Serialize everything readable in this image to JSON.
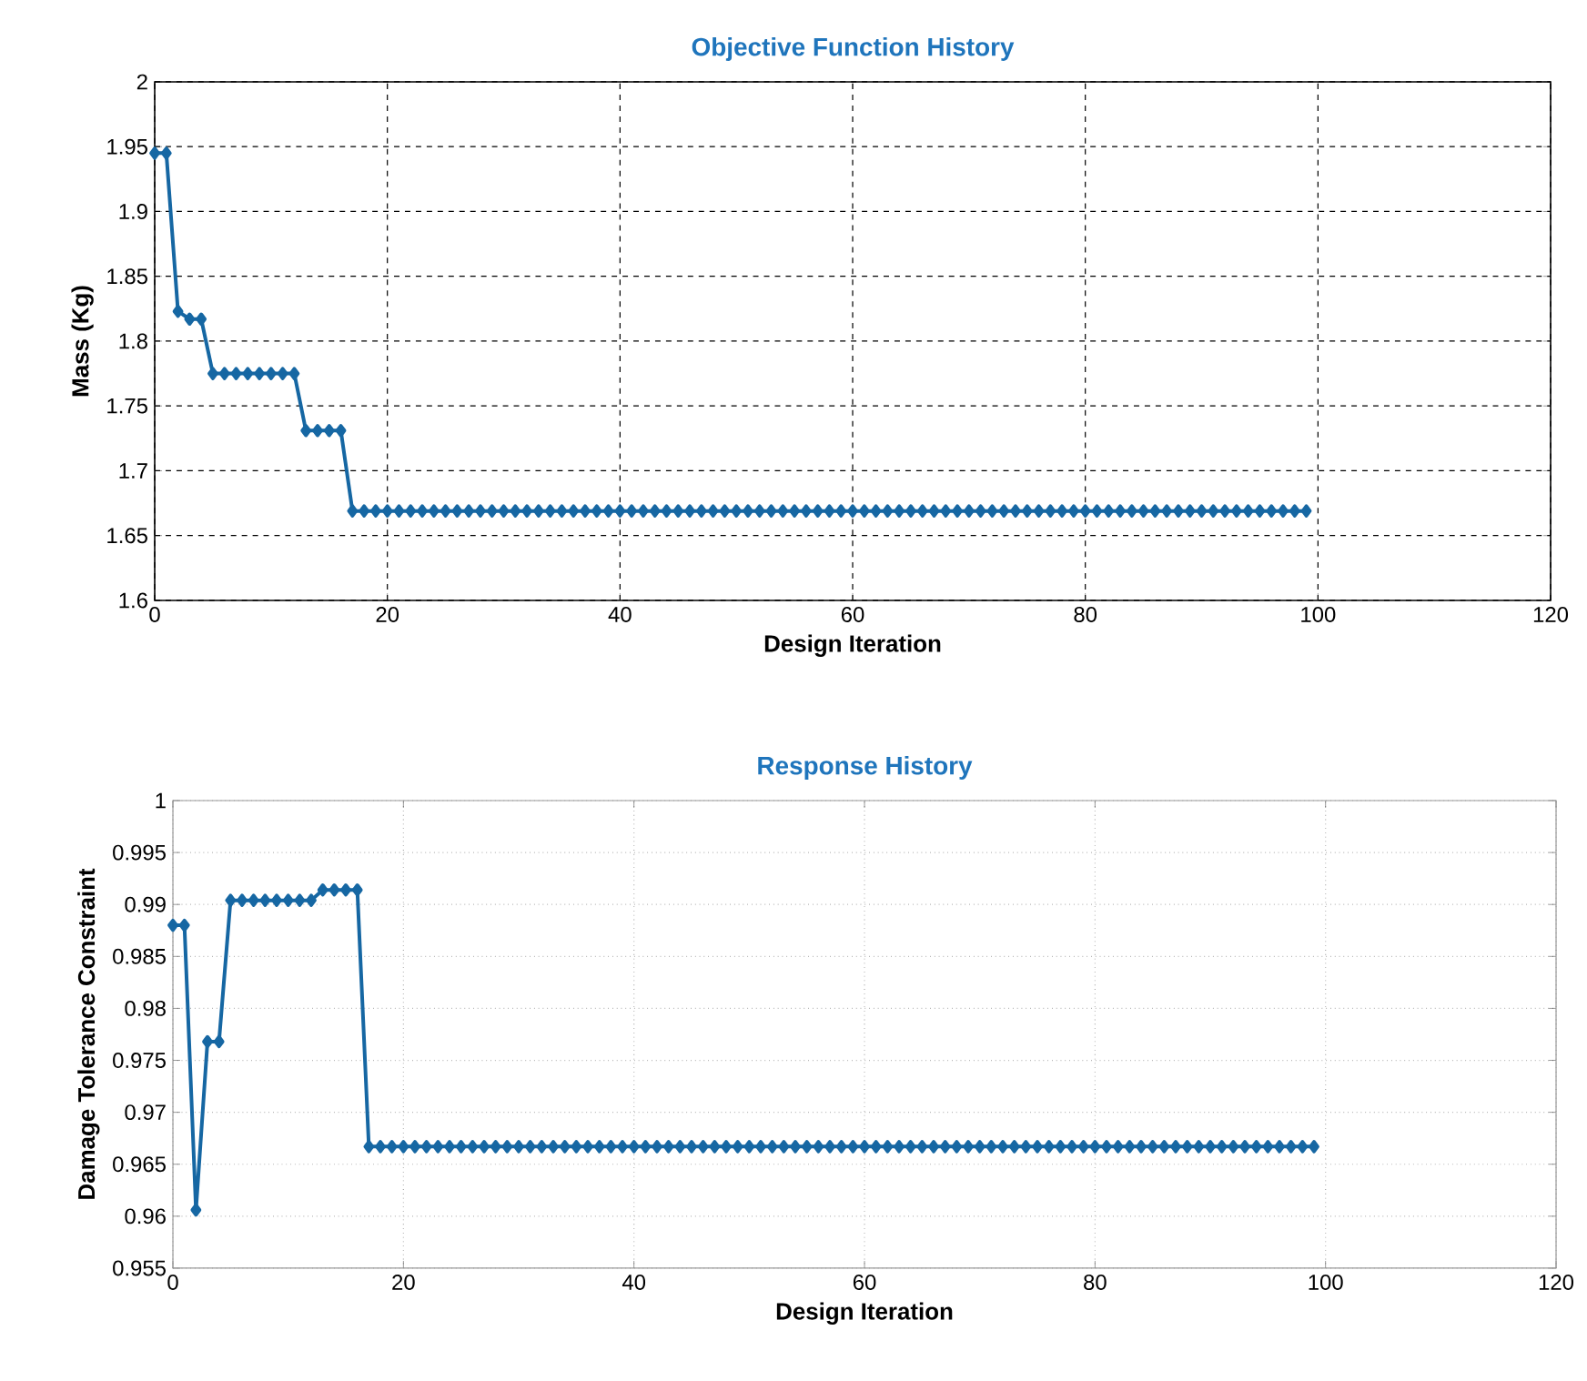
{
  "chart_data": [
    {
      "type": "line",
      "title": "Objective Function  History",
      "xlabel": "Design Iteration",
      "ylabel": "Mass (Kg)",
      "xlim": [
        0,
        120
      ],
      "xticks": [
        0,
        20,
        40,
        60,
        80,
        100,
        120
      ],
      "ylim": [
        1.6,
        2
      ],
      "yticks": [
        1.6,
        1.65,
        1.7,
        1.75,
        1.8,
        1.85,
        1.9,
        1.95,
        2
      ],
      "grid": true,
      "marker": "diamond",
      "line_style": "solid",
      "x": [
        0,
        1,
        2,
        3,
        4,
        5,
        6,
        7,
        8,
        9,
        10,
        11,
        12,
        13,
        14,
        15,
        16,
        17,
        18,
        19,
        20,
        21,
        22,
        23,
        24,
        25,
        26,
        27,
        28,
        29,
        30,
        31,
        32,
        33,
        34,
        35,
        36,
        37,
        38,
        39,
        40,
        41,
        42,
        43,
        44,
        45,
        46,
        47,
        48,
        49,
        50,
        51,
        52,
        53,
        54,
        55,
        56,
        57,
        58,
        59,
        60,
        61,
        62,
        63,
        64,
        65,
        66,
        67,
        68,
        69,
        70,
        71,
        72,
        73,
        74,
        75,
        76,
        77,
        78,
        79,
        80,
        81,
        82,
        83,
        84,
        85,
        86,
        87,
        88,
        89,
        90,
        91,
        92,
        93,
        94,
        95,
        96,
        97,
        98,
        99
      ],
      "series": [
        {
          "color": "#1667a3",
          "values": [
            1.945,
            1.945,
            1.823,
            1.817,
            1.817,
            1.775,
            1.775,
            1.775,
            1.775,
            1.775,
            1.775,
            1.775,
            1.775,
            1.731,
            1.731,
            1.731,
            1.731,
            1.669,
            1.669,
            1.669,
            1.669,
            1.669,
            1.669,
            1.669,
            1.669,
            1.669,
            1.669,
            1.669,
            1.669,
            1.669,
            1.669,
            1.669,
            1.669,
            1.669,
            1.669,
            1.669,
            1.669,
            1.669,
            1.669,
            1.669,
            1.669,
            1.669,
            1.669,
            1.669,
            1.669,
            1.669,
            1.669,
            1.669,
            1.669,
            1.669,
            1.669,
            1.669,
            1.669,
            1.669,
            1.669,
            1.669,
            1.669,
            1.669,
            1.669,
            1.669,
            1.669,
            1.669,
            1.669,
            1.669,
            1.669,
            1.669,
            1.669,
            1.669,
            1.669,
            1.669,
            1.669,
            1.669,
            1.669,
            1.669,
            1.669,
            1.669,
            1.669,
            1.669,
            1.669,
            1.669,
            1.669,
            1.669,
            1.669,
            1.669,
            1.669,
            1.669,
            1.669,
            1.669,
            1.669,
            1.669,
            1.669,
            1.669,
            1.669,
            1.669,
            1.669,
            1.669,
            1.669,
            1.669,
            1.669,
            1.669
          ]
        }
      ]
    },
    {
      "type": "line",
      "title": "Response History",
      "xlabel": "Design Iteration",
      "ylabel": "Damage Tolerance Constraint",
      "xlim": [
        0,
        120
      ],
      "xticks": [
        0,
        20,
        40,
        60,
        80,
        100,
        120
      ],
      "ylim": [
        0.955,
        1
      ],
      "yticks": [
        0.955,
        0.96,
        0.965,
        0.97,
        0.975,
        0.98,
        0.985,
        0.99,
        0.995,
        1
      ],
      "grid": true,
      "marker": "diamond",
      "line_style": "solid",
      "x": [
        0,
        1,
        2,
        3,
        4,
        5,
        6,
        7,
        8,
        9,
        10,
        11,
        12,
        13,
        14,
        15,
        16,
        17,
        18,
        19,
        20,
        21,
        22,
        23,
        24,
        25,
        26,
        27,
        28,
        29,
        30,
        31,
        32,
        33,
        34,
        35,
        36,
        37,
        38,
        39,
        40,
        41,
        42,
        43,
        44,
        45,
        46,
        47,
        48,
        49,
        50,
        51,
        52,
        53,
        54,
        55,
        56,
        57,
        58,
        59,
        60,
        61,
        62,
        63,
        64,
        65,
        66,
        67,
        68,
        69,
        70,
        71,
        72,
        73,
        74,
        75,
        76,
        77,
        78,
        79,
        80,
        81,
        82,
        83,
        84,
        85,
        86,
        87,
        88,
        89,
        90,
        91,
        92,
        93,
        94,
        95,
        96,
        97,
        98,
        99
      ],
      "series": [
        {
          "color": "#1667a3",
          "values": [
            0.988,
            0.988,
            0.9606,
            0.9768,
            0.9768,
            0.9904,
            0.9904,
            0.9904,
            0.9904,
            0.9904,
            0.9904,
            0.9904,
            0.9904,
            0.9914,
            0.9914,
            0.9914,
            0.9914,
            0.9667,
            0.9667,
            0.9667,
            0.9667,
            0.9667,
            0.9667,
            0.9667,
            0.9667,
            0.9667,
            0.9667,
            0.9667,
            0.9667,
            0.9667,
            0.9667,
            0.9667,
            0.9667,
            0.9667,
            0.9667,
            0.9667,
            0.9667,
            0.9667,
            0.9667,
            0.9667,
            0.9667,
            0.9667,
            0.9667,
            0.9667,
            0.9667,
            0.9667,
            0.9667,
            0.9667,
            0.9667,
            0.9667,
            0.9667,
            0.9667,
            0.9667,
            0.9667,
            0.9667,
            0.9667,
            0.9667,
            0.9667,
            0.9667,
            0.9667,
            0.9667,
            0.9667,
            0.9667,
            0.9667,
            0.9667,
            0.9667,
            0.9667,
            0.9667,
            0.9667,
            0.9667,
            0.9667,
            0.9667,
            0.9667,
            0.9667,
            0.9667,
            0.9667,
            0.9667,
            0.9667,
            0.9667,
            0.9667,
            0.9667,
            0.9667,
            0.9667,
            0.9667,
            0.9667,
            0.9667,
            0.9667,
            0.9667,
            0.9667,
            0.9667,
            0.9667,
            0.9667,
            0.9667,
            0.9667,
            0.9667,
            0.9667,
            0.9667,
            0.9667,
            0.9667,
            0.9667
          ]
        }
      ]
    }
  ]
}
